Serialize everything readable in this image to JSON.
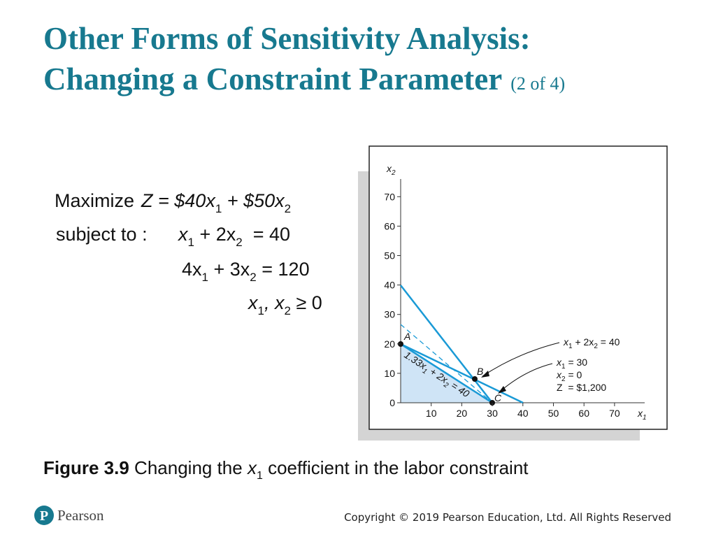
{
  "title": {
    "line1": "Other Forms of Sensitivity Analysis:",
    "line2": "Changing a Constraint Parameter",
    "part": "(2 of 4)"
  },
  "model": {
    "objective_label": "Maximize",
    "objective": [
      "Z = $40x",
      "1",
      " + $50x",
      "2"
    ],
    "constraint_label": "subject to :",
    "constraints": [
      [
        "x",
        "1",
        " + 2x",
        "2",
        "  = 40"
      ],
      [
        "4x",
        "1",
        " + 3x",
        "2",
        "  = 120"
      ],
      [
        "x",
        "1",
        ", x",
        "2",
        "  ≥ 0"
      ]
    ]
  },
  "figure": {
    "y_axis_label": [
      "x",
      "2"
    ],
    "x_axis_label": [
      "x",
      "1"
    ],
    "yticks": [
      0,
      10,
      20,
      30,
      40,
      50,
      60,
      70
    ],
    "xticks": [
      10,
      20,
      30,
      40,
      50,
      60,
      70
    ],
    "points": [
      "A",
      "B",
      "C"
    ],
    "constraint_annotation": [
      "x",
      "1",
      " + 2x",
      "2",
      " = 40"
    ],
    "solution": [
      [
        "x",
        "1",
        " = 30"
      ],
      [
        "x",
        "2",
        " = 0"
      ],
      [
        "Z  = $1,200"
      ]
    ],
    "new_constraint": [
      "1.33x",
      "1",
      " + 2x",
      "2",
      " = 40"
    ]
  },
  "caption": {
    "label": "Figure 3.9",
    "text1": " Changing the ",
    "var": "x",
    "sub": "1",
    "text2": " coefficient in the labor constraint"
  },
  "footer": {
    "logo": "Pearson",
    "copyright": "Copyright © 2019 Pearson Education, Ltd. All Rights Reserved"
  }
}
